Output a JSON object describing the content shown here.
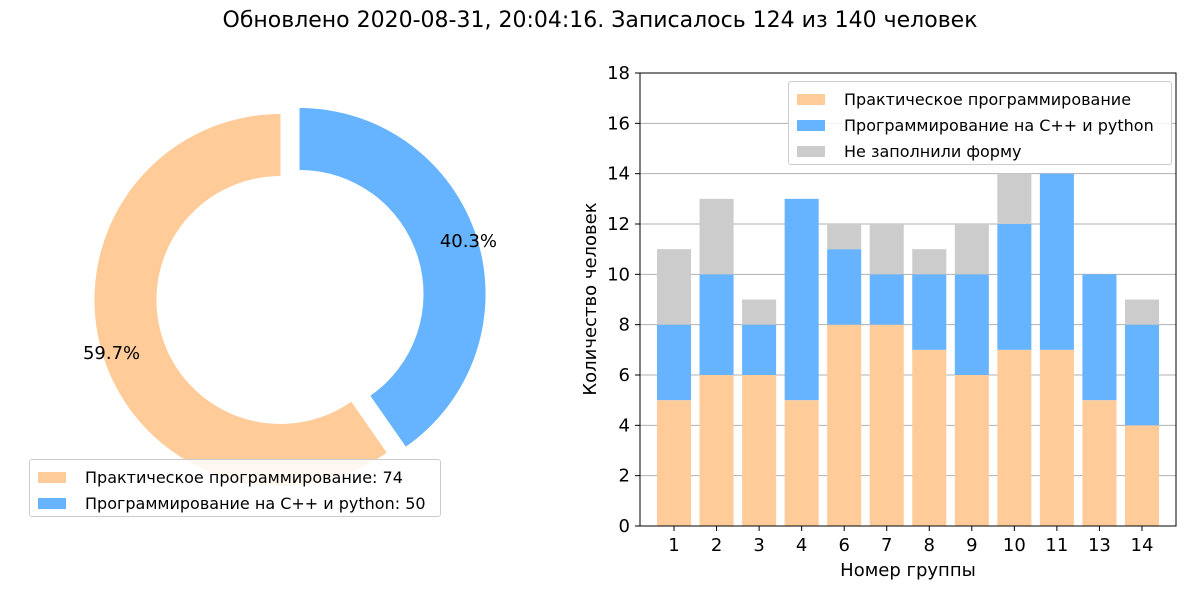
{
  "title": "Обновлено 2020-08-31, 20:04:16. Записалось 124 из 140 человек",
  "colors": {
    "practical": "#ffcc99",
    "cpp_python": "#66b3ff",
    "not_filled": "#cccccc"
  },
  "chart_data": [
    {
      "type": "pie",
      "variant": "donut",
      "slices": [
        {
          "label": "Практическое программирование: 74",
          "value": 74,
          "pct_label": "59.7%",
          "color": "#ffcc99"
        },
        {
          "label": "Программирование на C++ и python: 50",
          "value": 50,
          "pct_label": "40.3%",
          "color": "#66b3ff"
        }
      ],
      "legend_placement": "lower-left"
    },
    {
      "type": "bar",
      "stacked": true,
      "categories": [
        "1",
        "2",
        "3",
        "4",
        "6",
        "7",
        "8",
        "9",
        "10",
        "11",
        "13",
        "14"
      ],
      "series": [
        {
          "name": "Практическое программирование",
          "color": "#ffcc99",
          "values": [
            5,
            6,
            6,
            5,
            8,
            8,
            7,
            6,
            7,
            7,
            5,
            4
          ]
        },
        {
          "name": "Программирование на C++ и python",
          "color": "#66b3ff",
          "values": [
            3,
            4,
            2,
            8,
            3,
            2,
            3,
            4,
            5,
            7,
            5,
            4
          ]
        },
        {
          "name": "Не заполнили форму",
          "color": "#cccccc",
          "values": [
            3,
            3,
            1,
            0,
            1,
            2,
            1,
            2,
            2,
            0,
            0,
            1
          ]
        }
      ],
      "xlabel": "Номер группы",
      "ylabel": "Количество человек",
      "ylim": [
        0,
        18
      ],
      "yticks": [
        "0",
        "2",
        "4",
        "6",
        "8",
        "10",
        "12",
        "14",
        "16",
        "18"
      ],
      "grid": "y",
      "legend_placement": "upper-right"
    }
  ]
}
